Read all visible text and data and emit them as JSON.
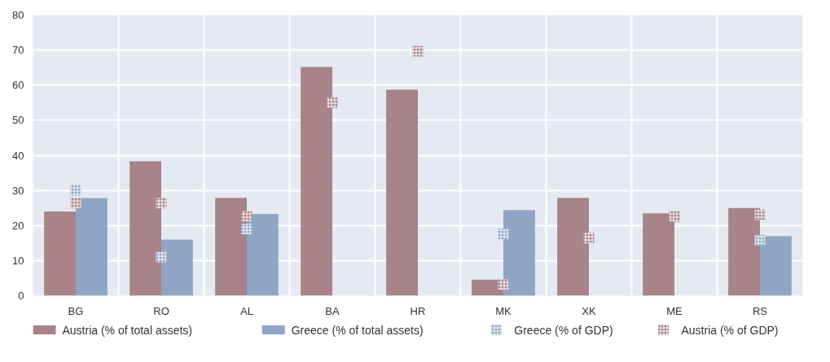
{
  "chart_data": {
    "type": "bar",
    "categories": [
      "BG",
      "RO",
      "AL",
      "BA",
      "HR",
      "MK",
      "XK",
      "ME",
      "RS"
    ],
    "ylim": [
      0,
      80
    ],
    "yticks": [
      0,
      10,
      20,
      30,
      40,
      50,
      60,
      70,
      80
    ],
    "grid": true,
    "legend": "bottom",
    "series": [
      {
        "name": "Austria (% of total assets)",
        "color": "#a8838a",
        "values": [
          24,
          38.3,
          27.9,
          65.2,
          58.7,
          4.6,
          27.9,
          23.5,
          25
        ]
      },
      {
        "name": "Greece (% of total assets)",
        "color": "#8fa5c4",
        "values": [
          27.8,
          16,
          23.3,
          null,
          null,
          24.4,
          null,
          null,
          17
        ]
      },
      {
        "name": "Greece (% of GDP)",
        "type": "scatter",
        "marker": "square",
        "color": "#8fa5c4",
        "values": [
          30,
          11,
          19,
          null,
          null,
          17.6,
          null,
          null,
          15.8
        ]
      },
      {
        "name": "Austria (% of GDP)",
        "type": "scatter",
        "marker": "square",
        "color": "#a8838a",
        "values": [
          26.4,
          26.4,
          22.6,
          55,
          69.7,
          3.2,
          16.4,
          22.6,
          23.1
        ]
      }
    ]
  }
}
